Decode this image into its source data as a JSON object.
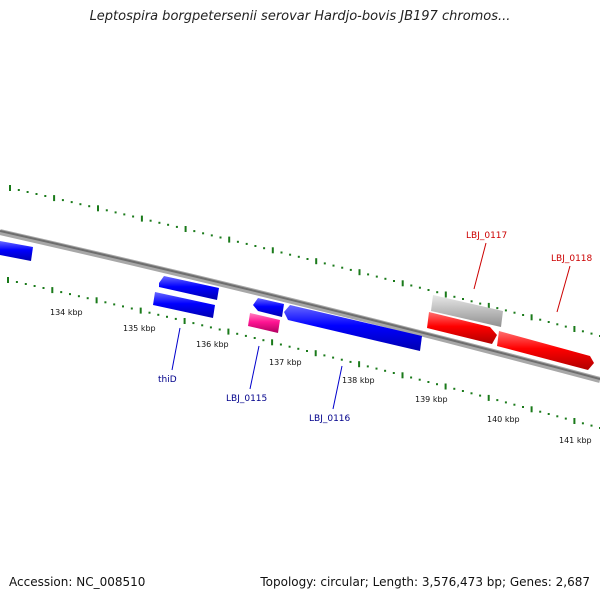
{
  "title": "Leptospira borgpetersenii serovar Hardjo-bovis JB197 chromos...",
  "footer": {
    "accession": "Accession: NC_008510",
    "topology": "Topology: circular; Length: 3,576,473 bp; Genes: 2,687"
  },
  "colors": {
    "forward_gene": "#ff0000",
    "reverse_gene": "#0000ff",
    "pseudo_gene": "#ff1493",
    "rna_gene": "#c0c0c0",
    "backbone": "#7f7f7f",
    "tick": "#1a7a1a",
    "label_reverse": "#00008b",
    "label_forward": "#cc0000"
  },
  "ticks": [
    "134 kbp",
    "135 kbp",
    "136 kbp",
    "137 kbp",
    "138 kbp",
    "139 kbp",
    "140 kbp",
    "141 kbp"
  ],
  "gene_labels": {
    "thiD": "thiD",
    "LBJ_0115": "LBJ_0115",
    "LBJ_0116": "LBJ_0116",
    "LBJ_0117": "LBJ_0117",
    "LBJ_0118": "LBJ_0118"
  }
}
